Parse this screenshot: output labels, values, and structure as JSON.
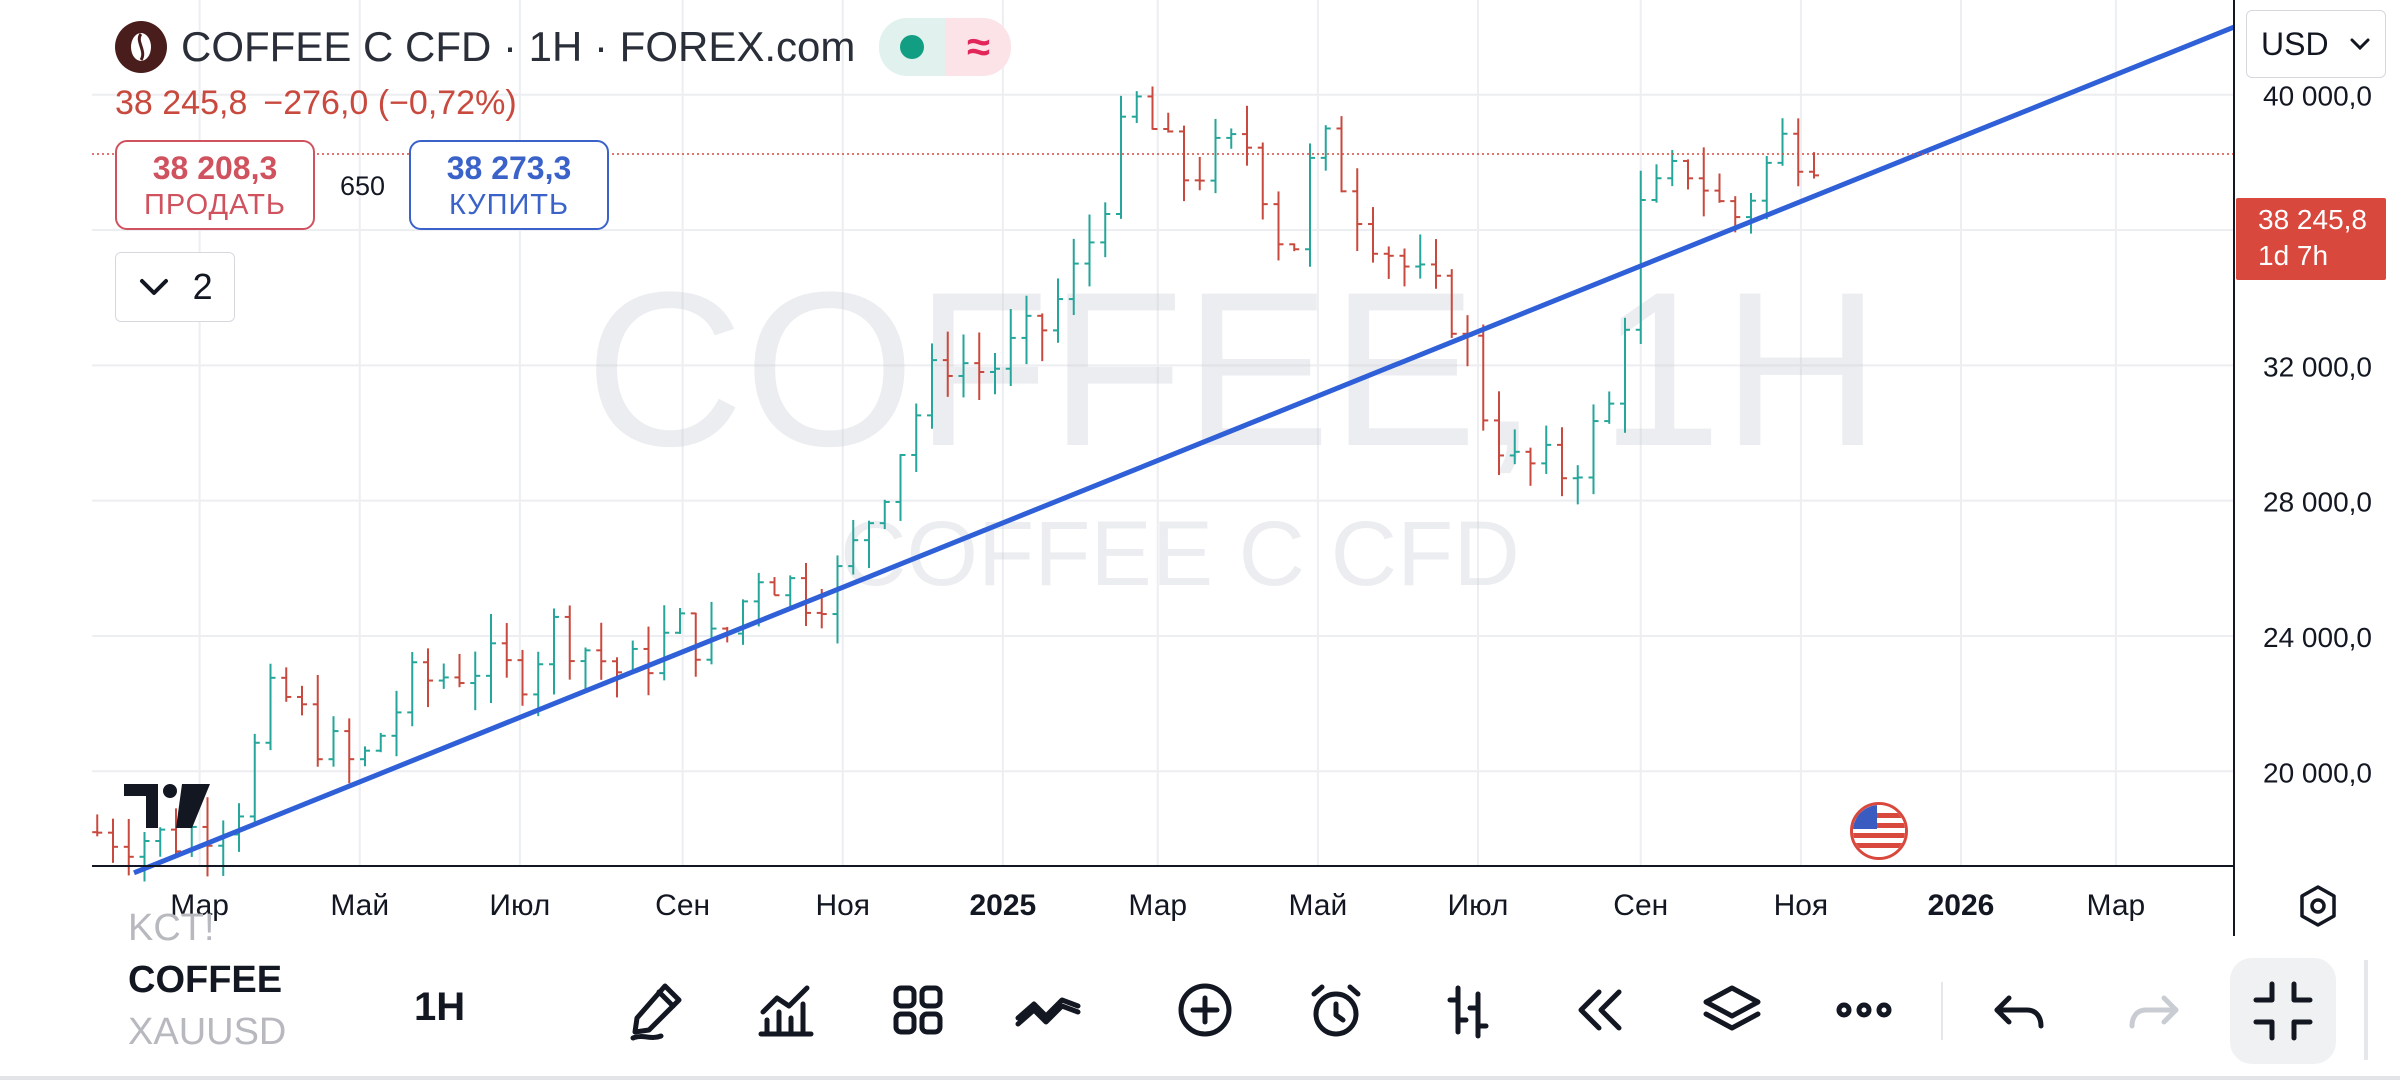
{
  "header": {
    "title": "COFFEE C CFD · 1H · FOREX.com",
    "price": "38 245,8",
    "change": "−276,0 (−0,72%)",
    "status_icon": "market-open-dot",
    "wave_icon": "≈"
  },
  "trade": {
    "sell_price": "38 208,3",
    "sell_label": "ПРОДАТЬ",
    "buy_price": "38 273,3",
    "buy_label": "КУПИТЬ",
    "spread": "650"
  },
  "indicators_toggle": {
    "count": "2"
  },
  "currency": {
    "value": "USD"
  },
  "price_label": {
    "price": "38 245,8",
    "countdown": "1d 7h",
    "color": "#d9483d"
  },
  "watermark": {
    "main": "COFFEE, 1H",
    "sub": "COFFEE C CFD"
  },
  "bottom_bar": {
    "symbols": [
      "KCT!",
      "COFFEE",
      "XAUUSD"
    ],
    "current_symbol": "COFFEE",
    "timeframe": "1H"
  },
  "colors": {
    "up": "#26a69a",
    "down": "#c8493d",
    "trendline": "#3060d8",
    "grid": "#eceef1"
  },
  "chart_data": {
    "type": "bar",
    "subtype": "ohlc",
    "ylim": [
      17200,
      42800
    ],
    "x_domain": [
      "2024-01-20",
      "2026-04-15"
    ],
    "y_ticks": [
      {
        "value": 20000,
        "label": "20 000,0"
      },
      {
        "value": 24000,
        "label": "24 000,0"
      },
      {
        "value": 28000,
        "label": "28 000,0"
      },
      {
        "value": 32000,
        "label": "32 000,0"
      },
      {
        "value": 36000,
        "label": "36 000,0"
      },
      {
        "value": 40000,
        "label": "40 000,0"
      }
    ],
    "x_ticks": [
      {
        "date": "2024-03-01",
        "label": "Мар",
        "bold": false
      },
      {
        "date": "2024-05-01",
        "label": "Май",
        "bold": false
      },
      {
        "date": "2024-07-01",
        "label": "Июл",
        "bold": false
      },
      {
        "date": "2024-09-01",
        "label": "Сен",
        "bold": false
      },
      {
        "date": "2024-11-01",
        "label": "Ноя",
        "bold": false
      },
      {
        "date": "2025-01-01",
        "label": "2025",
        "bold": true
      },
      {
        "date": "2025-03-01",
        "label": "Мар",
        "bold": false
      },
      {
        "date": "2025-05-01",
        "label": "Май",
        "bold": false
      },
      {
        "date": "2025-07-01",
        "label": "Июл",
        "bold": false
      },
      {
        "date": "2025-09-01",
        "label": "Сен",
        "bold": false
      },
      {
        "date": "2025-11-01",
        "label": "Ноя",
        "bold": false
      },
      {
        "date": "2026-01-01",
        "label": "2026",
        "bold": true
      },
      {
        "date": "2026-03-01",
        "label": "Мар",
        "bold": false
      }
    ],
    "last_price": 38245.8,
    "trendline": {
      "start": [
        "2024-02-05",
        17000
      ],
      "end": [
        "2026-04-15",
        42000
      ]
    },
    "series": [
      {
        "waypoints": [
          [
            "2024-01-22",
            18200
          ],
          [
            "2024-02-20",
            18000
          ],
          [
            "2024-03-15",
            18900
          ],
          [
            "2024-03-30",
            22500
          ],
          [
            "2024-04-15",
            21000
          ],
          [
            "2024-04-30",
            20000
          ],
          [
            "2024-05-20",
            22500
          ],
          [
            "2024-06-15",
            23200
          ],
          [
            "2024-06-30",
            22800
          ],
          [
            "2024-07-15",
            24300
          ],
          [
            "2024-08-10",
            22800
          ],
          [
            "2024-08-30",
            24200
          ],
          [
            "2024-09-15",
            23600
          ],
          [
            "2024-09-30",
            26000
          ],
          [
            "2024-10-20",
            25200
          ],
          [
            "2024-11-01",
            25800
          ],
          [
            "2024-11-25",
            30000
          ],
          [
            "2024-12-10",
            32300
          ],
          [
            "2024-12-25",
            31800
          ],
          [
            "2025-01-15",
            33000
          ],
          [
            "2025-01-31",
            35000
          ],
          [
            "2025-02-20",
            39800
          ],
          [
            "2025-03-10",
            37600
          ],
          [
            "2025-04-05",
            38600
          ],
          [
            "2025-04-20",
            35000
          ],
          [
            "2025-05-01",
            38800
          ],
          [
            "2025-05-20",
            36200
          ],
          [
            "2025-06-10",
            34300
          ],
          [
            "2025-06-25",
            33300
          ],
          [
            "2025-07-01",
            31000
          ],
          [
            "2025-07-15",
            29000
          ],
          [
            "2025-08-05",
            28900
          ],
          [
            "2025-08-20",
            30700
          ],
          [
            "2025-09-01",
            36500
          ],
          [
            "2025-09-20",
            38000
          ],
          [
            "2025-10-05",
            36200
          ],
          [
            "2025-10-25",
            38600
          ],
          [
            "2025-11-10",
            38300
          ]
        ],
        "range": 1700
      }
    ]
  }
}
